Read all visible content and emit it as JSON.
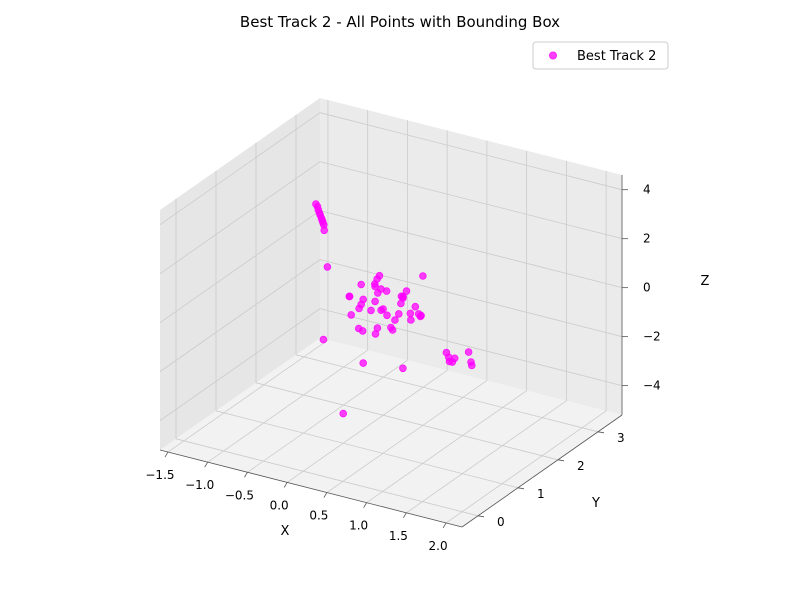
{
  "chart_data": {
    "type": "scatter",
    "projection": "3d",
    "title": "Best Track 2 - All Points with Bounding Box",
    "xlabel": "X",
    "ylabel": "Y",
    "zlabel": "Z",
    "xlim": [
      -1.6,
      2.2
    ],
    "ylim": [
      -0.4,
      3.6
    ],
    "zlim": [
      -5.2,
      4.6
    ],
    "x_ticks": [
      "−1.5",
      "−1.0",
      "−0.5",
      "0.0",
      "0.5",
      "1.0",
      "1.5",
      "2.0"
    ],
    "x_tick_values": [
      -1.5,
      -1.0,
      -0.5,
      0.0,
      0.5,
      1.0,
      1.5,
      2.0
    ],
    "y_ticks": [
      "0",
      "1",
      "2",
      "3"
    ],
    "y_tick_values": [
      0,
      1,
      2,
      3
    ],
    "z_ticks": [
      "−4",
      "−2",
      "0",
      "2",
      "4"
    ],
    "z_tick_values": [
      -4,
      -2,
      0,
      2,
      4
    ],
    "grid": true,
    "legend_position": "top-right",
    "series": [
      {
        "name": "Best Track 2",
        "color": "#ff00ff",
        "points": [
          [
            -1.45,
            3.2,
            0.85
          ],
          [
            -1.42,
            3.18,
            0.8
          ],
          [
            -1.4,
            3.16,
            0.7
          ],
          [
            -1.38,
            3.15,
            0.6
          ],
          [
            -1.36,
            3.13,
            0.55
          ],
          [
            -1.34,
            3.12,
            0.45
          ],
          [
            -1.32,
            3.1,
            0.4
          ],
          [
            -1.3,
            3.08,
            0.35
          ],
          [
            -1.28,
            3.06,
            0.3
          ],
          [
            -1.27,
            3.05,
            0.1
          ],
          [
            1.5,
            0.6,
            0.2
          ],
          [
            1.52,
            0.62,
            0.0
          ],
          [
            1.55,
            0.58,
            -0.1
          ],
          [
            1.6,
            0.55,
            -0.05
          ],
          [
            1.62,
            0.57,
            0.1
          ],
          [
            1.78,
            0.6,
            0.45
          ],
          [
            1.82,
            0.58,
            0.1
          ],
          [
            1.84,
            0.56,
            0.0
          ],
          [
            0.0,
            1.5,
            0.1
          ],
          [
            0.1,
            1.6,
            0.6
          ],
          [
            0.2,
            1.4,
            0.3
          ],
          [
            -0.05,
            1.55,
            -0.2
          ],
          [
            0.05,
            1.3,
            0.0
          ],
          [
            0.15,
            1.7,
            -0.4
          ],
          [
            0.3,
            1.5,
            -0.3
          ],
          [
            0.25,
            1.2,
            0.2
          ],
          [
            -0.1,
            1.4,
            -0.5
          ],
          [
            0.35,
            1.8,
            0.1
          ],
          [
            0.4,
            1.4,
            -0.6
          ],
          [
            0.12,
            1.25,
            -0.8
          ],
          [
            0.22,
            1.65,
            0.45
          ],
          [
            -0.15,
            1.75,
            0.3
          ],
          [
            0.45,
            1.55,
            0.25
          ],
          [
            0.5,
            1.3,
            -0.1
          ],
          [
            0.05,
            1.85,
            -0.7
          ],
          [
            0.28,
            1.9,
            0.0
          ],
          [
            0.38,
            1.1,
            -0.3
          ],
          [
            -0.02,
            1.2,
            0.55
          ],
          [
            0.18,
            1.45,
            -1.1
          ],
          [
            0.32,
            1.6,
            -1.0
          ],
          [
            0.08,
            1.75,
            0.85
          ],
          [
            0.42,
            1.75,
            0.5
          ],
          [
            0.55,
            1.6,
            -0.4
          ],
          [
            -0.2,
            1.55,
            0.0
          ],
          [
            0.6,
            1.2,
            0.35
          ],
          [
            0.62,
            1.45,
            0.1
          ],
          [
            0.02,
            1.35,
            -0.9
          ],
          [
            0.26,
            1.35,
            0.75
          ],
          [
            0.48,
            1.85,
            -0.2
          ],
          [
            -0.08,
            1.95,
            0.15
          ],
          [
            0.2,
            2.1,
            -0.3
          ],
          [
            0.35,
            1.25,
            1.1
          ],
          [
            0.72,
            1.5,
            0.0
          ],
          [
            0.78,
            1.4,
            0.2
          ],
          [
            0.8,
            1.3,
            0.4
          ],
          [
            0.5,
            2.0,
            0.9
          ],
          [
            0.15,
            1.55,
            1.0
          ],
          [
            -0.5,
            1.6,
            0.9
          ],
          [
            -0.45,
            1.4,
            -1.8
          ],
          [
            0.0,
            1.5,
            -2.5
          ],
          [
            0.5,
            1.5,
            -2.3
          ],
          [
            -0.1,
            1.2,
            -4.3
          ]
        ]
      }
    ]
  }
}
